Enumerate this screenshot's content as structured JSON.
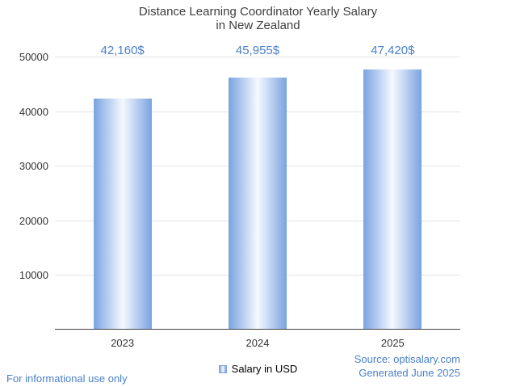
{
  "chart_data": {
    "type": "bar",
    "title": "Distance Learning Coordinator Yearly Salary in New Zealand",
    "title_lines": [
      "Distance Learning Coordinator Yearly Salary",
      "in New Zealand"
    ],
    "categories": [
      "2023",
      "2024",
      "2025"
    ],
    "values": [
      42160,
      45955,
      47420
    ],
    "value_labels": [
      "42,160$",
      "45,955$",
      "47,420$"
    ],
    "series": [
      {
        "name": "Salary in USD",
        "values": [
          42160,
          45955,
          47420
        ]
      }
    ],
    "xlabel": "",
    "ylabel": "",
    "ylim": [
      0,
      50000
    ],
    "yticks": [
      10000,
      20000,
      30000,
      40000,
      50000
    ],
    "ytick_labels": [
      "10000",
      "20000",
      "30000",
      "40000",
      "50000"
    ],
    "grid": true,
    "legend_position": "bottom",
    "colors": {
      "accent_text": "#4a80c9",
      "title": "#3d3d3d",
      "axis_text": "#333333",
      "gridline": "#e3e3e3",
      "axis_line": "#424242",
      "bar_edge": "#7aa3e0",
      "bar_center": "#f5f9ff"
    }
  },
  "legend": {
    "label": "Salary in USD"
  },
  "footer": {
    "left": "For informational use only",
    "source": "Source: optisalary.com",
    "generated": "Generated June 2025"
  }
}
